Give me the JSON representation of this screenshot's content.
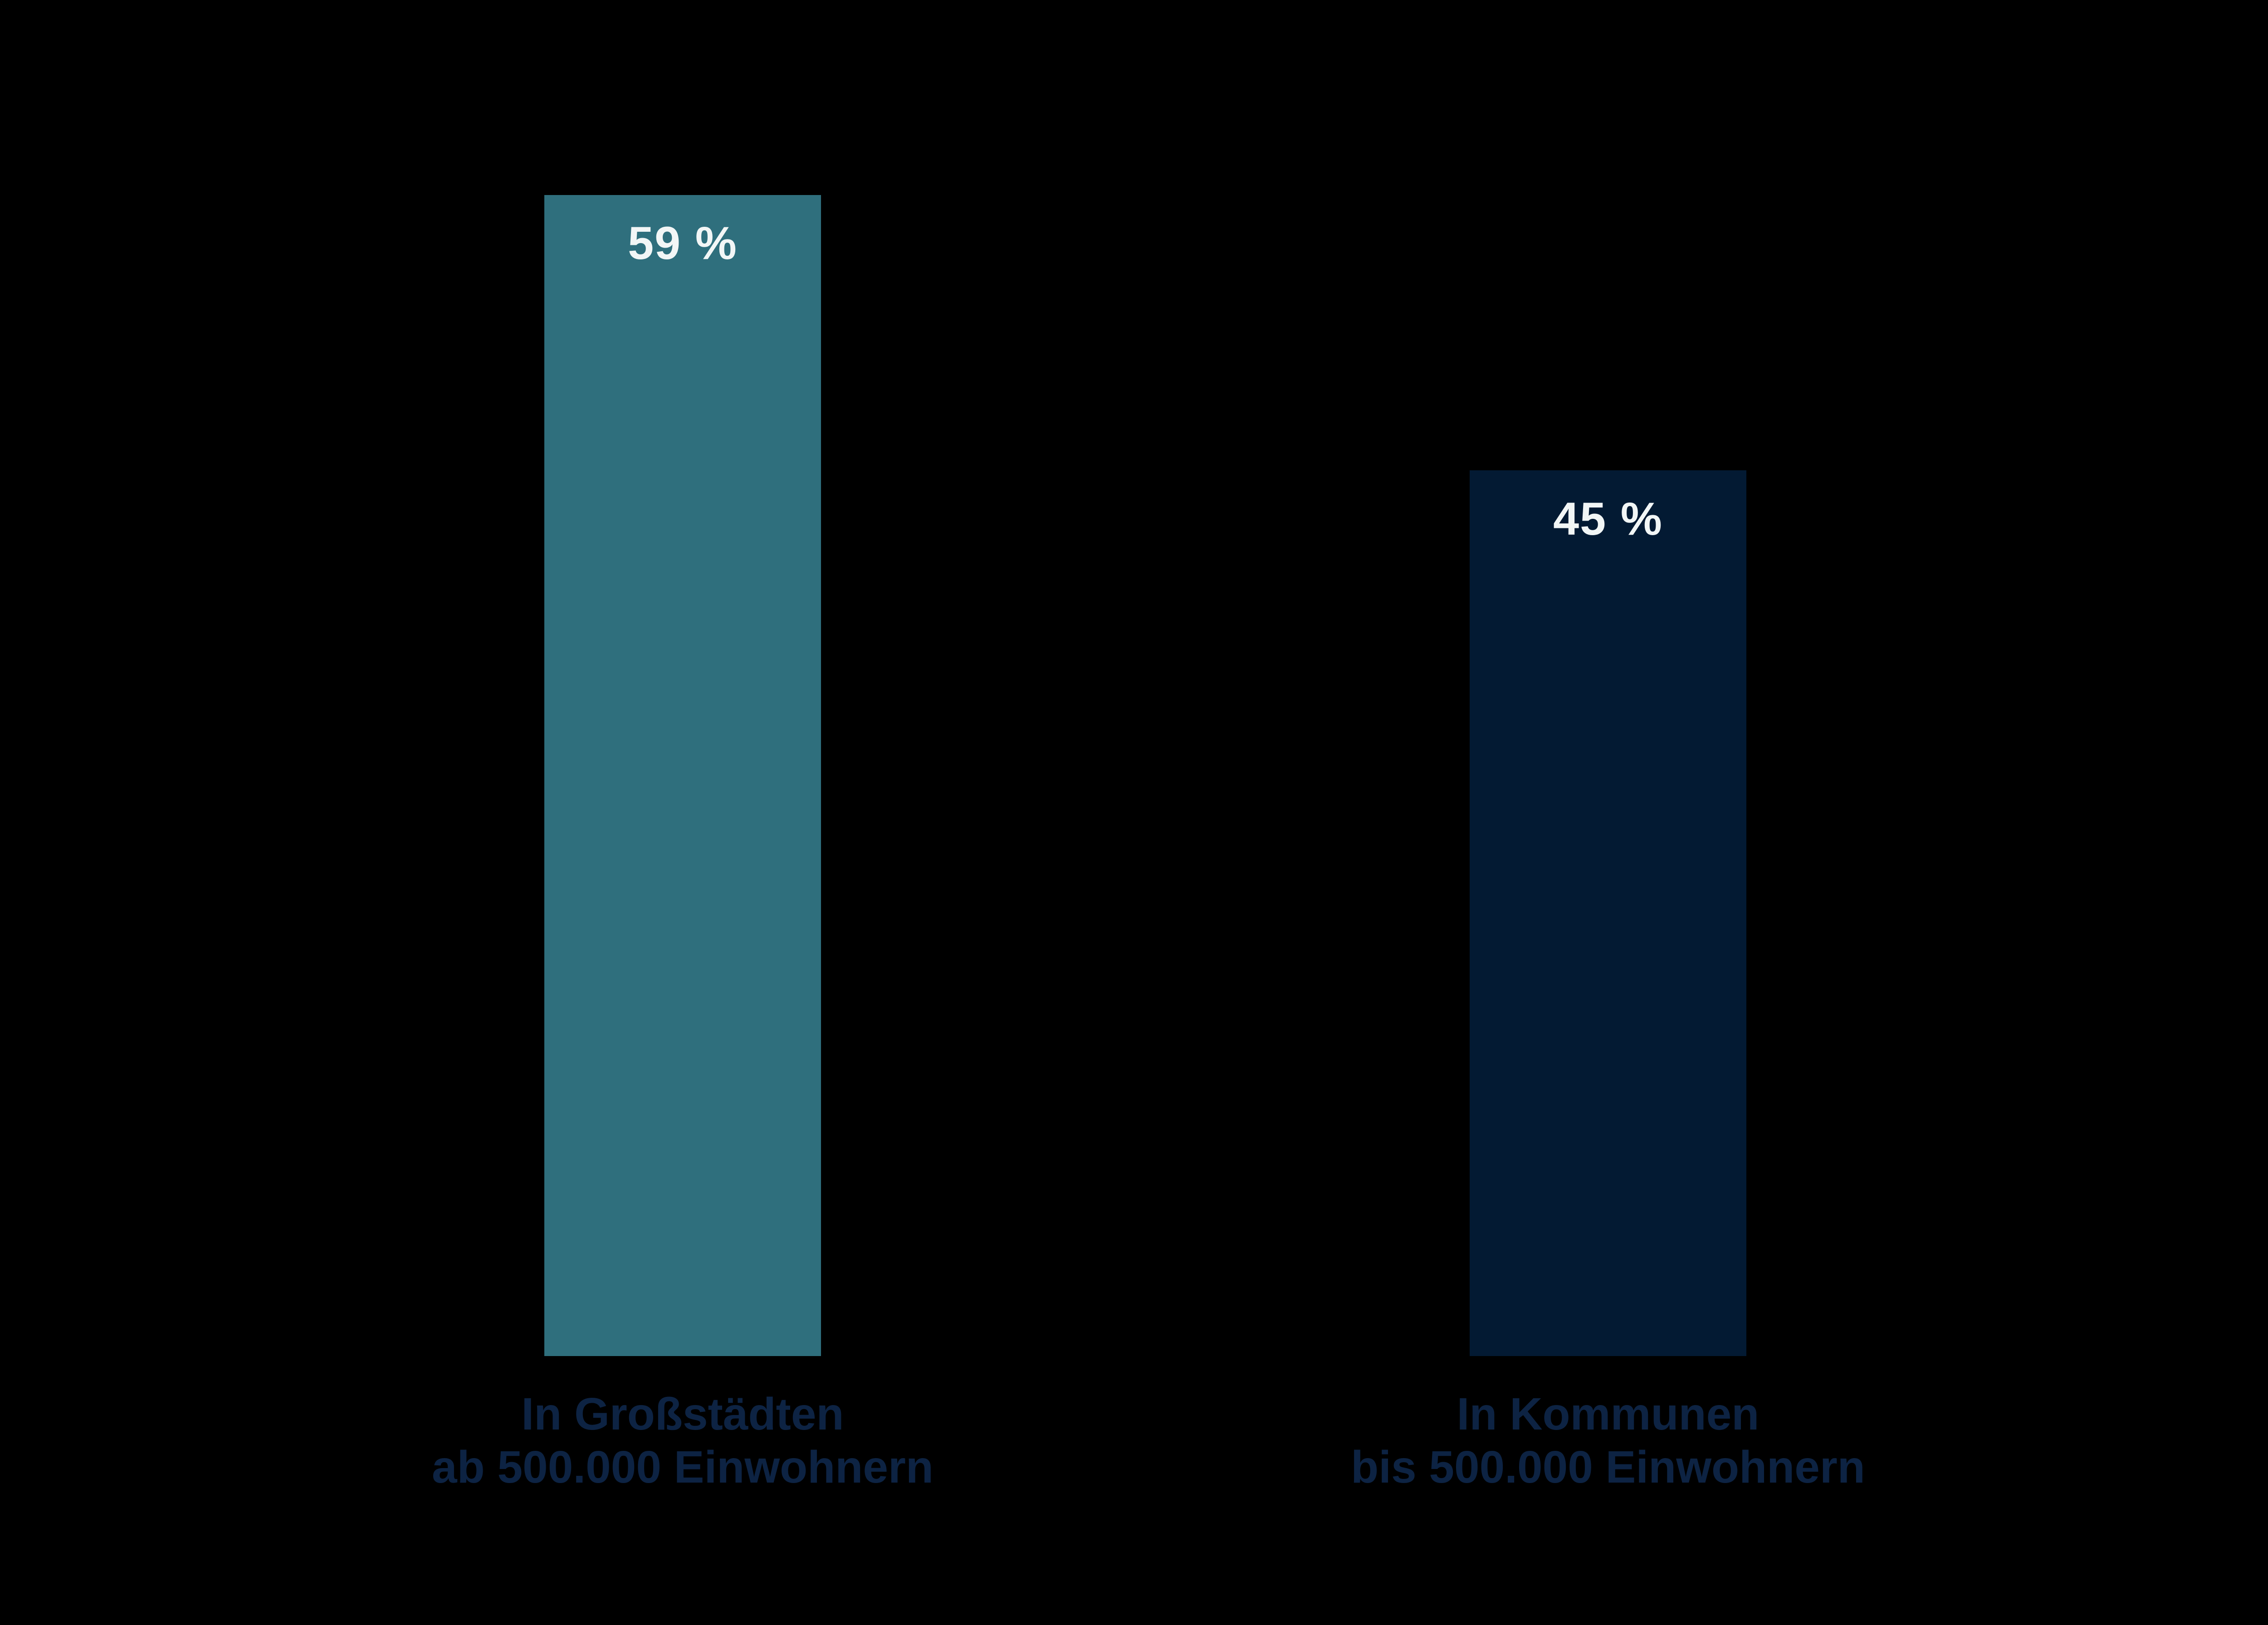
{
  "chart_data": {
    "type": "bar",
    "title": "",
    "categories": [
      "In Großstädten ab 500.000 Einwohnern",
      "In Kommunen bis 500.000 Einwohnern"
    ],
    "values": [
      59,
      45
    ],
    "ylim": [
      0,
      100
    ],
    "grid": false,
    "legend": false,
    "bars": [
      {
        "value": 59,
        "value_label": "59 %",
        "label_line1": "In Großstädten",
        "label_line2": "ab 500.000 Einwohnern",
        "color": "#2F6F7D"
      },
      {
        "value": 45,
        "value_label": "45 %",
        "label_line1": "In Kommunen",
        "label_line2": "bis 500.000 Einwohnern",
        "color": "#031A33"
      }
    ],
    "colors": {
      "background": "#000000",
      "value_label_text": "#F2F6F6",
      "category_label_text": "#0D2343"
    }
  }
}
